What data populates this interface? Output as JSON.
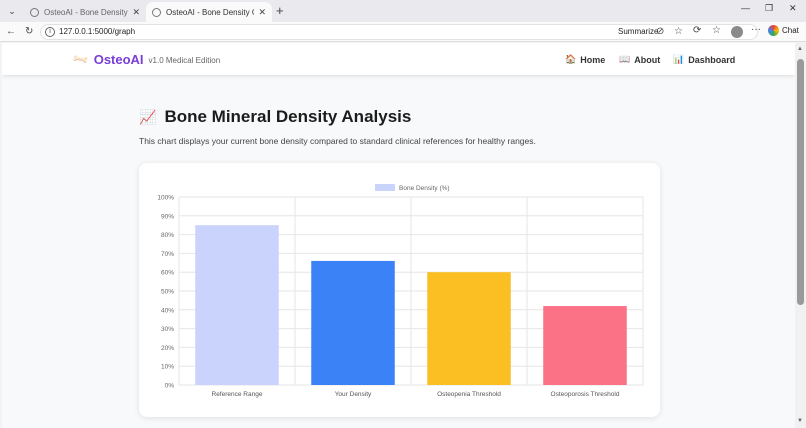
{
  "browser": {
    "tabs": [
      {
        "label": "OsteoAI - Bone Density Analysis",
        "active": false
      },
      {
        "label": "OsteoAI - Bone Density Graph",
        "active": true
      }
    ],
    "url": "127.0.0.1:5000/graph",
    "summarize_label": "Summarize",
    "chat_label": "Chat"
  },
  "navbar": {
    "brand": "OsteoAI",
    "version": "v1.0 Medical Edition",
    "links": [
      {
        "label": "Home",
        "icon": "house-icon"
      },
      {
        "label": "About",
        "icon": "book-icon"
      },
      {
        "label": "Dashboard",
        "icon": "bar-chart-icon"
      }
    ]
  },
  "main": {
    "title": "Bone Mineral Density Analysis",
    "subtitle": "This chart displays your current bone density compared to standard clinical references for healthy ranges."
  },
  "chart_data": {
    "type": "bar",
    "categories": [
      "Reference Range",
      "Your Density",
      "Osteopenia Threshold",
      "Osteoporosis Threshold"
    ],
    "series": [
      {
        "name": "Bone Density (%)",
        "values": [
          85,
          66,
          60,
          42
        ]
      }
    ],
    "colors": [
      "#c9d3fb",
      "#3b82f6",
      "#fbbf24",
      "#fb7185"
    ],
    "legend_color": "#c9d3fb",
    "ylim": [
      0,
      100
    ],
    "yticks": [
      "0%",
      "10%",
      "20%",
      "30%",
      "40%",
      "50%",
      "60%",
      "70%",
      "80%",
      "90%",
      "100%"
    ],
    "grid": true,
    "legend": "top-center"
  }
}
